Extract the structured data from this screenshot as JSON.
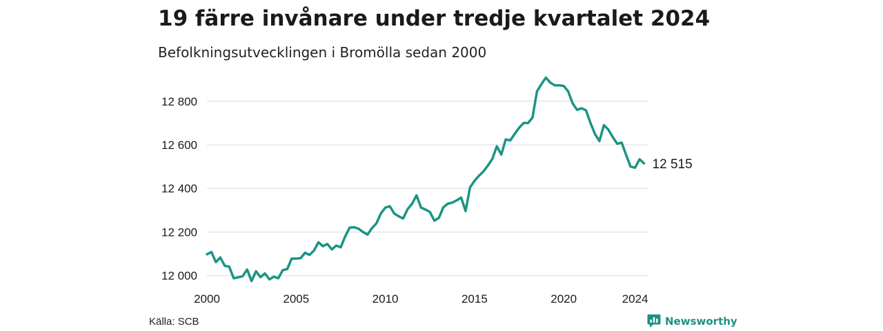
{
  "header": {
    "title": "19 färre invånare under tredje kvartalet 2024",
    "subtitle": "Befolkningsutvecklingen i Bromölla sedan 2000"
  },
  "footer": {
    "source": "Källa: SCB",
    "brand": "Newsworthy"
  },
  "colors": {
    "line": "#1a9484",
    "grid": "#d9d9d9",
    "text": "#1a1a1a",
    "brand": "#1f8f84"
  },
  "chart_data": {
    "type": "line",
    "title": "19 färre invånare under tredje kvartalet 2024",
    "subtitle": "Befolkningsutvecklingen i Bromölla sedan 2000",
    "xlabel": "",
    "ylabel": "",
    "xlim": [
      2000,
      2024.75
    ],
    "ylim": [
      11980,
      12910
    ],
    "x_ticks": [
      2000,
      2005,
      2010,
      2015,
      2020,
      2024
    ],
    "x_tick_labels": [
      "2000",
      "2005",
      "2010",
      "2015",
      "2020",
      "2024"
    ],
    "y_ticks": [
      12000,
      12200,
      12400,
      12600,
      12800
    ],
    "y_tick_labels": [
      "12 000",
      "12 200",
      "12 400",
      "12 600",
      "12 800"
    ],
    "grid": "horizontal",
    "legend": "none",
    "end_label": "12 515",
    "series": [
      {
        "x": [
          2000,
          2000.25,
          2000.5,
          2000.75,
          2001,
          2001.25,
          2001.5,
          2001.75,
          2002,
          2002.25,
          2002.5,
          2002.75,
          2003,
          2003.25,
          2003.5,
          2003.75,
          2004,
          2004.25,
          2004.5,
          2004.75,
          2005,
          2005.25,
          2005.5,
          2005.75,
          2006,
          2006.25,
          2006.5,
          2006.75,
          2007,
          2007.25,
          2007.5,
          2007.75,
          2008,
          2008.25,
          2008.5,
          2008.75,
          2009,
          2009.25,
          2009.5,
          2009.75,
          2010,
          2010.25,
          2010.5,
          2010.75,
          2011,
          2011.25,
          2011.5,
          2011.75,
          2012,
          2012.25,
          2012.5,
          2012.75,
          2013,
          2013.25,
          2013.5,
          2013.75,
          2014,
          2014.25,
          2014.5,
          2014.75,
          2015,
          2015.25,
          2015.5,
          2015.75,
          2016,
          2016.25,
          2016.5,
          2016.75,
          2017,
          2017.25,
          2017.5,
          2017.75,
          2018,
          2018.25,
          2018.5,
          2018.75,
          2019,
          2019.25,
          2019.5,
          2019.75,
          2020,
          2020.25,
          2020.5,
          2020.75,
          2021,
          2021.25,
          2021.5,
          2021.75,
          2022,
          2022.25,
          2022.5,
          2022.75,
          2023,
          2023.25,
          2023.5,
          2023.75,
          2024,
          2024.25,
          2024.5
        ],
        "values": [
          12098,
          12108,
          12062,
          12083,
          12045,
          12041,
          11988,
          11992,
          11997,
          12028,
          11975,
          12020,
          11993,
          12010,
          11983,
          11995,
          11988,
          12025,
          12030,
          12078,
          12078,
          12080,
          12105,
          12095,
          12115,
          12153,
          12135,
          12145,
          12120,
          12138,
          12130,
          12180,
          12220,
          12222,
          12215,
          12200,
          12188,
          12218,
          12240,
          12285,
          12312,
          12318,
          12285,
          12272,
          12262,
          12305,
          12330,
          12368,
          12312,
          12303,
          12292,
          12252,
          12265,
          12313,
          12330,
          12335,
          12345,
          12358,
          12296,
          12405,
          12435,
          12458,
          12478,
          12505,
          12535,
          12593,
          12555,
          12625,
          12620,
          12650,
          12678,
          12700,
          12700,
          12725,
          12845,
          12878,
          12908,
          12885,
          12873,
          12873,
          12870,
          12845,
          12790,
          12760,
          12768,
          12758,
          12700,
          12650,
          12617,
          12690,
          12670,
          12635,
          12605,
          12610,
          12553,
          12500,
          12495,
          12534,
          12515
        ]
      }
    ]
  }
}
